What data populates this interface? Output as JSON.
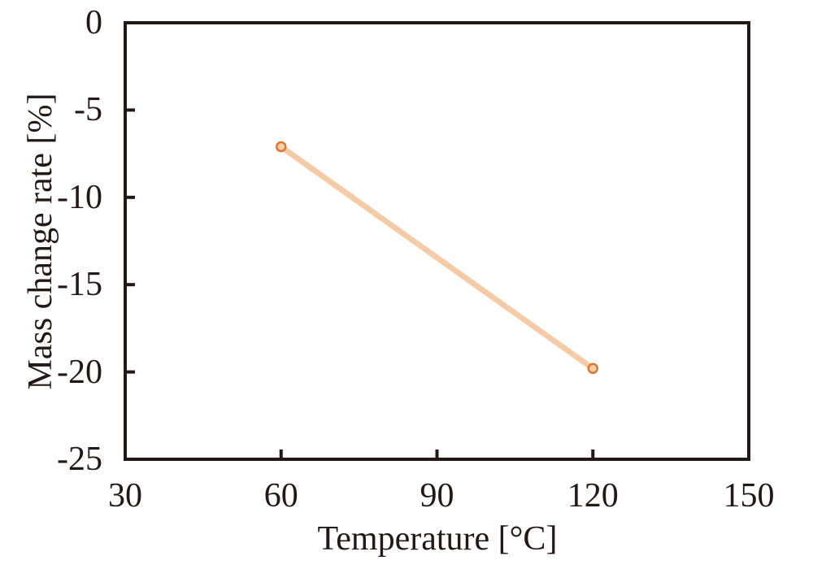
{
  "chart_data": {
    "type": "line",
    "x": [
      60,
      120
    ],
    "y": [
      -7.1,
      -19.8
    ],
    "series": [
      {
        "name": "mass-change-rate",
        "x": [
          60,
          120
        ],
        "values": [
          -7.1,
          -19.8
        ]
      }
    ],
    "title": "",
    "xlabel": "Temperature [°C]",
    "ylabel": "Mass change rate [%]",
    "xlim": [
      30,
      150
    ],
    "ylim": [
      -25,
      0
    ],
    "xticks": [
      30,
      60,
      90,
      120,
      150
    ],
    "yticks": [
      0,
      -5,
      -10,
      -15,
      -20,
      -25
    ],
    "grid": false,
    "legend_position": "none",
    "colors": {
      "line": "#f5cba6",
      "marker_fill": "#f6cfac",
      "marker_edge": "#e0762f",
      "frame": "#231815",
      "text": "#231815",
      "background": "#ffffff"
    }
  }
}
